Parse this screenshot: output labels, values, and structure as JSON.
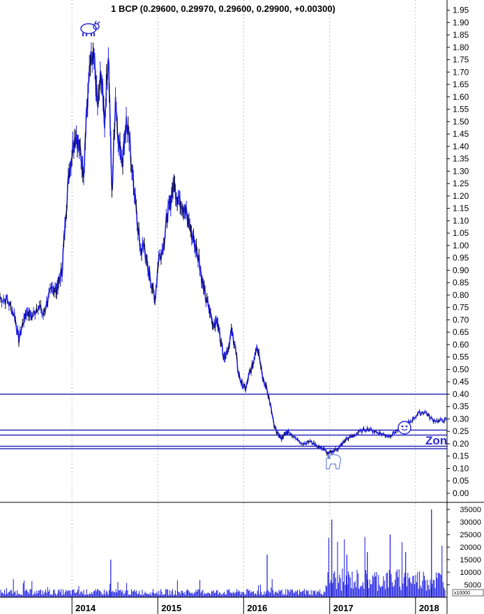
{
  "colors": {
    "price": "#1f1fe0",
    "price_dark": "#000000",
    "zone_lines": "#1a1ab8",
    "volume": "#1515e0",
    "grid": "#c0c0c0",
    "background": "#ffffff",
    "axis": "#000000"
  },
  "chart_data": [
    {
      "type": "line",
      "title": "1 BCP (0.29600, 0.29970, 0.29600, 0.29900, +0.00300)",
      "xlabel": "",
      "ylabel": "",
      "x_ticks": [
        "2014",
        "2015",
        "2016",
        "2017",
        "2018"
      ],
      "y_ticks": [
        "0.00",
        "0.05",
        "0.10",
        "0.15",
        "0.20",
        "0.25",
        "0.30",
        "0.35",
        "0.40",
        "0.45",
        "0.50",
        "0.55",
        "0.60",
        "0.65",
        "0.70",
        "0.75",
        "0.80",
        "0.85",
        "0.90",
        "0.95",
        "1.00",
        "1.05",
        "1.10",
        "1.15",
        "1.20",
        "1.25",
        "1.30",
        "1.35",
        "1.40",
        "1.45",
        "1.50",
        "1.55",
        "1.60",
        "1.65",
        "1.70",
        "1.75",
        "1.80",
        "1.85",
        "1.90",
        "1.95"
      ],
      "ylim": [
        0.0,
        1.95
      ],
      "xlim": [
        "2013-03-01",
        "2018-05-15"
      ],
      "grid": "vertical dotted at year starts",
      "series": [
        {
          "x": [
            "2013-03-01",
            "2013-04-01",
            "2013-05-01",
            "2013-05-20",
            "2013-06-10",
            "2013-06-25",
            "2013-07-15",
            "2013-08-10",
            "2013-09-01",
            "2013-09-20",
            "2013-10-10",
            "2013-10-25",
            "2013-11-05",
            "2013-11-20",
            "2013-12-05",
            "2013-12-20",
            "2014-01-05",
            "2014-01-20",
            "2014-02-05",
            "2014-02-20",
            "2014-03-05",
            "2014-03-20",
            "2014-04-05",
            "2014-04-20",
            "2014-05-05",
            "2014-05-20",
            "2014-06-05",
            "2014-06-20",
            "2014-07-05",
            "2014-07-20",
            "2014-08-05",
            "2014-08-20",
            "2014-09-05",
            "2014-09-20",
            "2014-10-05",
            "2014-10-20",
            "2014-11-05",
            "2014-11-20",
            "2014-12-05",
            "2014-12-20",
            "2015-01-05",
            "2015-01-25",
            "2015-02-10",
            "2015-02-25",
            "2015-03-10",
            "2015-03-25",
            "2015-04-10",
            "2015-04-25",
            "2015-05-10",
            "2015-05-25",
            "2015-06-10",
            "2015-06-25",
            "2015-07-10",
            "2015-07-25",
            "2015-08-10",
            "2015-08-25",
            "2015-09-10",
            "2015-09-25",
            "2015-10-10",
            "2015-10-25",
            "2015-11-10",
            "2015-11-25",
            "2015-12-10",
            "2015-12-25",
            "2016-01-10",
            "2016-01-25",
            "2016-02-10",
            "2016-02-25",
            "2016-03-10",
            "2016-03-25",
            "2016-04-10",
            "2016-04-25",
            "2016-05-10",
            "2016-05-25",
            "2016-06-10",
            "2016-06-25",
            "2016-07-10",
            "2016-08-10",
            "2016-09-10",
            "2016-10-10",
            "2016-11-10",
            "2016-12-05",
            "2016-12-25",
            "2017-01-15",
            "2017-02-05",
            "2017-02-25",
            "2017-03-15",
            "2017-04-10",
            "2017-05-10",
            "2017-06-10",
            "2017-07-10",
            "2017-08-10",
            "2017-09-10",
            "2017-10-10",
            "2017-11-10",
            "2017-12-10",
            "2018-01-10",
            "2018-02-10",
            "2018-03-10",
            "2018-04-10",
            "2018-05-10"
          ],
          "values": [
            0.79,
            0.78,
            0.72,
            0.62,
            0.7,
            0.74,
            0.71,
            0.76,
            0.72,
            0.78,
            0.83,
            0.82,
            0.85,
            0.9,
            1.12,
            1.3,
            1.4,
            1.45,
            1.38,
            1.3,
            1.55,
            1.73,
            1.75,
            1.55,
            1.7,
            1.5,
            1.79,
            1.2,
            1.6,
            1.4,
            1.35,
            1.5,
            1.4,
            1.25,
            1.1,
            0.98,
            1.0,
            0.9,
            0.85,
            0.78,
            0.95,
            1.0,
            1.12,
            1.18,
            1.25,
            1.2,
            1.18,
            1.15,
            1.1,
            1.05,
            1.0,
            0.95,
            0.85,
            0.78,
            0.74,
            0.68,
            0.7,
            0.62,
            0.55,
            0.58,
            0.65,
            0.6,
            0.48,
            0.44,
            0.42,
            0.48,
            0.52,
            0.6,
            0.55,
            0.45,
            0.42,
            0.35,
            0.27,
            0.24,
            0.22,
            0.24,
            0.25,
            0.22,
            0.2,
            0.21,
            0.19,
            0.18,
            0.16,
            0.17,
            0.18,
            0.2,
            0.22,
            0.23,
            0.25,
            0.26,
            0.25,
            0.24,
            0.23,
            0.25,
            0.27,
            0.29,
            0.32,
            0.33,
            0.3,
            0.29,
            0.299
          ]
        }
      ],
      "horizontal_lines": [
        0.4,
        0.255,
        0.235,
        0.19,
        0.18
      ],
      "annotations": [
        "Zon"
      ]
    },
    {
      "type": "bar",
      "title": "",
      "y_ticks": [
        "5000",
        "10000",
        "15000",
        "20000",
        "25000",
        "30000",
        "35000"
      ],
      "ylim": [
        0,
        37000
      ],
      "scale_label": "x10000",
      "spikes": [
        {
          "x": "2014-06-15",
          "value": 15000
        },
        {
          "x": "2016-04-10",
          "value": 17000
        },
        {
          "x": "2017-01-10",
          "value": 31000
        },
        {
          "x": "2017-03-15",
          "value": 17000
        },
        {
          "x": "2017-06-10",
          "value": 18000
        },
        {
          "x": "2017-09-15",
          "value": 25000
        },
        {
          "x": "2017-11-20",
          "value": 18000
        },
        {
          "x": "2018-03-10",
          "value": 35000
        }
      ]
    }
  ]
}
